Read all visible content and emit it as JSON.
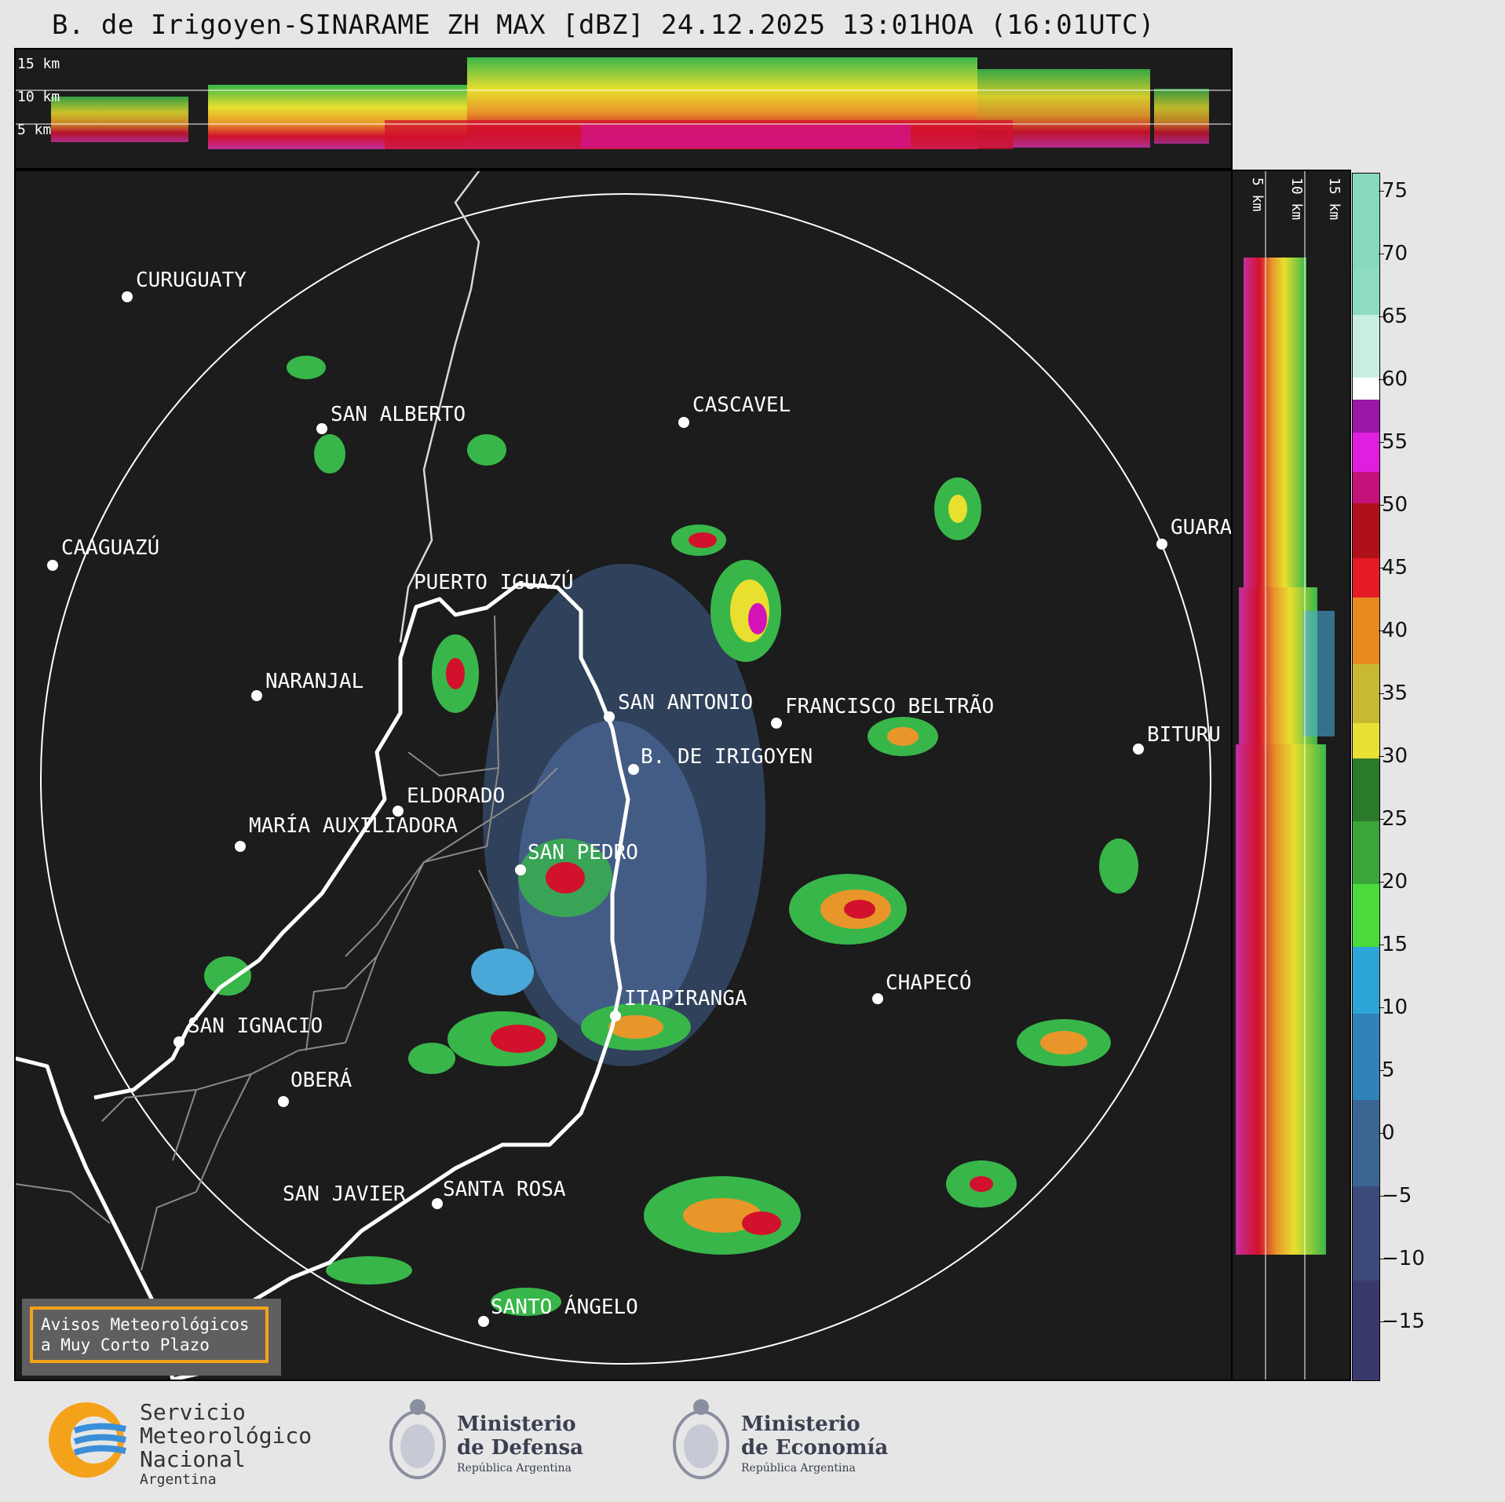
{
  "header": {
    "title": "B. de Irigoyen-SINARAME ZH MAX [dBZ] 24.12.2025 13:01HOA (16:01UTC)"
  },
  "top_panel": {
    "height_labels": [
      "15 km",
      "10 km",
      "5 km"
    ]
  },
  "side_panel": {
    "height_labels": [
      "5 km",
      "10 km",
      "15 km"
    ]
  },
  "map": {
    "cities": [
      {
        "name": "CURUGUATY"
      },
      {
        "name": "SAN ALBERTO"
      },
      {
        "name": "CASCAVEL"
      },
      {
        "name": "CAAGUAZÚ"
      },
      {
        "name": "GUARA"
      },
      {
        "name": "PUERTO IGUAZÚ"
      },
      {
        "name": "NARANJAL"
      },
      {
        "name": "SAN ANTONIO"
      },
      {
        "name": "FRANCISCO BELTRÃO"
      },
      {
        "name": "BITURU"
      },
      {
        "name": "B. DE IRIGOYEN"
      },
      {
        "name": "ELDORADO"
      },
      {
        "name": "MARÍA AUXILIADORA"
      },
      {
        "name": "SAN PEDRO"
      },
      {
        "name": "CHAPECÓ"
      },
      {
        "name": "ITAPIRANGA"
      },
      {
        "name": "SAN IGNACIO"
      },
      {
        "name": "OBERÁ"
      },
      {
        "name": "SAN JAVIER"
      },
      {
        "name": "SANTA ROSA"
      },
      {
        "name": "SANTO ÁNGELO"
      }
    ]
  },
  "warning": {
    "line1": "Avisos Meteorológicos",
    "line2": "a Muy Corto Plazo",
    "border_color": "#f5a21b"
  },
  "colorbar": {
    "unit": "dBZ",
    "ticks": [
      "75",
      "70",
      "65",
      "60",
      "55",
      "50",
      "45",
      "40",
      "35",
      "30",
      "25",
      "20",
      "15",
      "10",
      "5",
      "0",
      "−5",
      "−10",
      "−15"
    ]
  },
  "logos": {
    "smn": {
      "line1": "Servicio",
      "line2": "Meteorológico",
      "line3": "Nacional",
      "line4": "Argentina",
      "icon": "smn-logo-icon"
    },
    "defensa": {
      "line1": "Ministerio",
      "line2": "de Defensa",
      "line3": "República Argentina",
      "icon": "argentina-seal-icon"
    },
    "economia": {
      "line1": "Ministerio",
      "line2": "de Economía",
      "line3": "República Argentina",
      "icon": "argentina-seal-icon"
    }
  }
}
